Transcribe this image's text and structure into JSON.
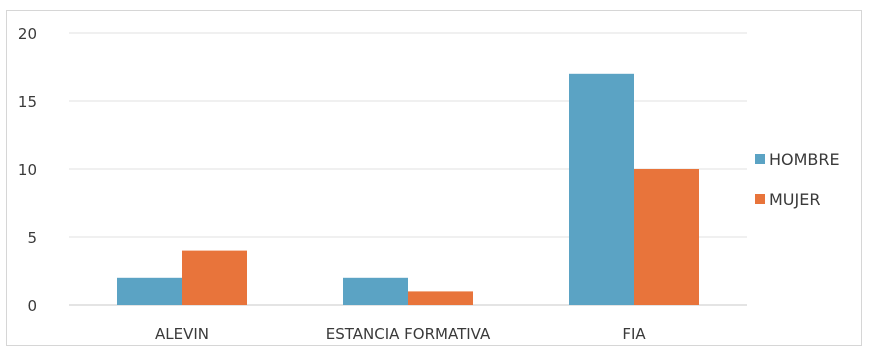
{
  "chart_data": {
    "type": "bar",
    "title": "",
    "xlabel": "",
    "ylabel": "",
    "categories": [
      "ALEVIN",
      "ESTANCIA FORMATIVA",
      "FIA"
    ],
    "series": [
      {
        "name": "HOMBRE",
        "values": [
          2,
          2,
          17
        ],
        "color": "#5ba3c4"
      },
      {
        "name": "MUJER",
        "values": [
          4,
          1,
          10
        ],
        "color": "#e8743b"
      }
    ],
    "ylim": [
      0,
      20
    ],
    "yticks": [
      0,
      5,
      10,
      15,
      20
    ],
    "grid": true,
    "legend_position": "right"
  }
}
